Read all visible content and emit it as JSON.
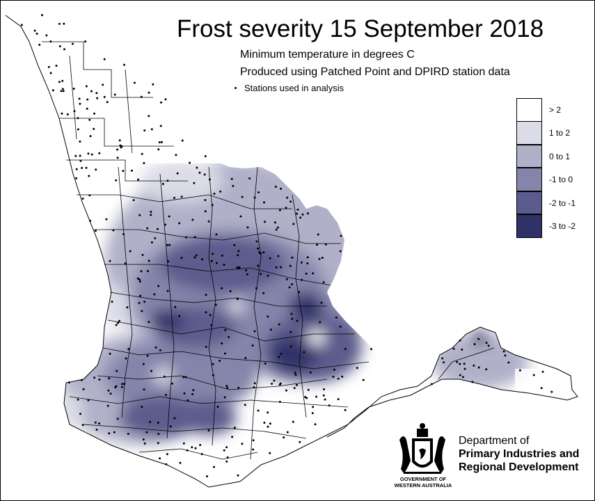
{
  "title": "Frost severity 15 September 2018",
  "subtitle_line1": "Minimum temperature in degrees C",
  "subtitle_line2": "Produced using Patched Point and DPIRD station data",
  "stations_note": "Stations used in analysis",
  "legend": [
    {
      "label": "> 2",
      "color": "#ffffff"
    },
    {
      "label": "1 to 2",
      "color": "#dcdce8"
    },
    {
      "label": "0 to 1",
      "color": "#b0b0c9"
    },
    {
      "label": "-1 to 0",
      "color": "#8585ab"
    },
    {
      "label": "-2 to -1",
      "color": "#5b5b8d"
    },
    {
      "label": "-3 to -2",
      "color": "#2f3266"
    }
  ],
  "organisation": {
    "line1": "Department of",
    "line2": "Primary Industries and",
    "line3": "Regional Development",
    "crest_caption_line1": "GOVERNMENT OF",
    "crest_caption_line2": "WESTERN AUSTRALIA"
  }
}
